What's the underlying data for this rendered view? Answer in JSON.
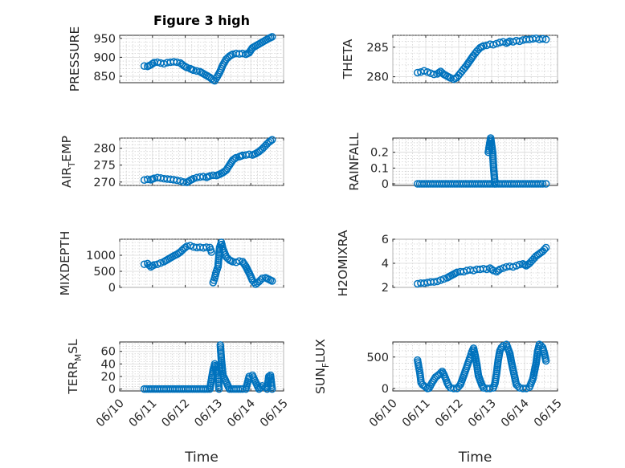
{
  "figure": {
    "title": "Figure 3 high",
    "marker_color": "#0072BD"
  },
  "chart_data": [
    {
      "id": "pressure",
      "type": "scatter",
      "title": "Figure 3 high",
      "ylabel": "PRESSURE",
      "xlabel": "",
      "xlim": [
        0,
        5
      ],
      "ylim": [
        833,
        958
      ],
      "yticks": [
        850,
        900,
        950
      ],
      "x": [
        0.75,
        0.85,
        0.95,
        1.05,
        1.15,
        1.25,
        1.35,
        1.45,
        1.55,
        1.65,
        1.75,
        1.85,
        1.95,
        2.05,
        2.15,
        2.25,
        2.35,
        2.45,
        2.55,
        2.65,
        2.75,
        2.85,
        2.9,
        2.95,
        3.05,
        3.15,
        3.25,
        3.35,
        3.45,
        3.55,
        3.65,
        3.75,
        3.85,
        3.95,
        4.05,
        4.15,
        4.25,
        4.35,
        4.45,
        4.55,
        4.65
      ],
      "y": [
        877,
        876,
        880,
        886,
        887,
        885,
        883,
        886,
        887,
        888,
        887,
        885,
        878,
        873,
        870,
        866,
        864,
        862,
        857,
        852,
        847,
        840,
        838,
        845,
        860,
        880,
        895,
        903,
        908,
        910,
        909,
        910,
        908,
        912,
        925,
        930,
        935,
        940,
        945,
        950,
        954
      ],
      "categories": []
    },
    {
      "id": "theta",
      "type": "scatter",
      "ylabel": "THETA",
      "xlabel": "",
      "xlim": [
        0,
        5
      ],
      "ylim": [
        279,
        287
      ],
      "yticks": [
        280,
        285
      ],
      "x": [
        0.75,
        0.85,
        0.95,
        1.05,
        1.15,
        1.25,
        1.35,
        1.45,
        1.55,
        1.65,
        1.75,
        1.85,
        1.95,
        2.05,
        2.15,
        2.25,
        2.35,
        2.45,
        2.55,
        2.65,
        2.75,
        2.85,
        2.95,
        3.05,
        3.15,
        3.25,
        3.35,
        3.45,
        3.55,
        3.65,
        3.75,
        3.85,
        3.95,
        4.05,
        4.15,
        4.25,
        4.35,
        4.45,
        4.55,
        4.65
      ],
      "y": [
        280.7,
        280.8,
        281.0,
        280.8,
        280.6,
        280.4,
        280.5,
        280.9,
        280.4,
        280.1,
        279.8,
        279.6,
        279.9,
        280.6,
        281.3,
        282.0,
        282.8,
        283.6,
        284.3,
        284.9,
        285.2,
        285.3,
        285.5,
        285.4,
        285.6,
        285.8,
        285.9,
        285.7,
        286.0,
        285.9,
        286.1,
        286.0,
        286.2,
        286.3,
        286.3,
        286.4,
        286.5,
        286.3,
        286.4,
        286.3
      ],
      "categories": []
    },
    {
      "id": "air_temp",
      "type": "scatter",
      "ylabel": "AIR",
      "ylabel_sub": "T",
      "ylabel_rest": "EMP",
      "xlabel": "",
      "xlim": [
        0,
        5
      ],
      "ylim": [
        269,
        283
      ],
      "yticks": [
        270,
        275,
        280
      ],
      "x": [
        0.75,
        0.85,
        0.95,
        1.05,
        1.15,
        1.25,
        1.35,
        1.45,
        1.55,
        1.65,
        1.75,
        1.85,
        1.95,
        2.05,
        2.15,
        2.25,
        2.35,
        2.45,
        2.55,
        2.65,
        2.75,
        2.85,
        2.95,
        3.05,
        3.15,
        3.25,
        3.35,
        3.45,
        3.55,
        3.65,
        3.75,
        3.85,
        3.95,
        4.05,
        4.15,
        4.25,
        4.35,
        4.45,
        4.55,
        4.65
      ],
      "y": [
        270.6,
        270.8,
        270.7,
        271.1,
        271.3,
        271.2,
        271.0,
        270.9,
        270.8,
        270.7,
        270.5,
        270.3,
        270.0,
        269.9,
        270.5,
        271.0,
        271.3,
        271.5,
        271.6,
        271.4,
        271.8,
        272.0,
        271.9,
        272.3,
        272.8,
        273.5,
        275.0,
        276.5,
        277.2,
        277.5,
        277.9,
        278.0,
        278.2,
        278.0,
        278.4,
        279.0,
        279.8,
        280.8,
        281.8,
        282.5
      ],
      "categories": []
    },
    {
      "id": "rainfall",
      "type": "scatter",
      "ylabel": "RAINFALL",
      "xlabel": "",
      "xlim": [
        0,
        5
      ],
      "ylim": [
        -0.01,
        0.29
      ],
      "yticks": [
        0,
        0.1,
        0.2
      ],
      "x": [
        0.75,
        0.95,
        1.15,
        1.35,
        1.55,
        1.75,
        1.95,
        2.15,
        2.35,
        2.55,
        2.75,
        2.95,
        3.15,
        3.35,
        3.55,
        3.75,
        3.95,
        4.15,
        4.35,
        4.55,
        4.65,
        2.9,
        2.97,
        3.03,
        3.06,
        3.1
      ],
      "y": [
        0,
        0,
        0,
        0,
        0,
        0,
        0,
        0,
        0,
        0,
        0,
        0,
        0,
        0,
        0,
        0,
        0,
        0,
        0,
        0,
        0,
        0.2,
        0.29,
        0.2,
        0.1,
        0.0
      ],
      "categories": []
    },
    {
      "id": "mixdepth",
      "type": "scatter",
      "ylabel": "MIXDEPTH",
      "xlabel": "",
      "xlim": [
        0,
        5
      ],
      "ylim": [
        0,
        1500
      ],
      "yticks": [
        0,
        500,
        1000
      ],
      "x": [
        0.75,
        0.85,
        0.95,
        1.05,
        1.15,
        1.25,
        1.35,
        1.45,
        1.55,
        1.65,
        1.75,
        1.85,
        1.95,
        2.05,
        2.15,
        2.25,
        2.35,
        2.45,
        2.55,
        2.65,
        2.75,
        2.8,
        2.85,
        2.9,
        2.95,
        3.0,
        3.05,
        3.1,
        3.15,
        3.25,
        3.35,
        3.45,
        3.55,
        3.65,
        3.75,
        3.85,
        3.95,
        4.05,
        4.15,
        4.25,
        4.35,
        4.45,
        4.55,
        4.65
      ],
      "y": [
        720,
        740,
        640,
        700,
        720,
        760,
        800,
        860,
        920,
        980,
        1030,
        1100,
        1200,
        1280,
        1300,
        1260,
        1240,
        1250,
        1230,
        1250,
        1240,
        1100,
        150,
        300,
        500,
        650,
        1250,
        1400,
        1200,
        950,
        850,
        800,
        780,
        820,
        800,
        650,
        450,
        220,
        100,
        180,
        280,
        300,
        250,
        200
      ],
      "categories": []
    },
    {
      "id": "h2omixra",
      "type": "scatter",
      "ylabel": "H2OMIXRA",
      "xlabel": "",
      "xlim": [
        0,
        5
      ],
      "ylim": [
        2,
        6
      ],
      "yticks": [
        2,
        4,
        6
      ],
      "x": [
        0.75,
        0.85,
        0.95,
        1.05,
        1.15,
        1.25,
        1.35,
        1.45,
        1.55,
        1.65,
        1.75,
        1.85,
        1.95,
        2.05,
        2.15,
        2.25,
        2.35,
        2.45,
        2.55,
        2.65,
        2.75,
        2.85,
        2.95,
        3.05,
        3.15,
        3.25,
        3.35,
        3.45,
        3.55,
        3.65,
        3.75,
        3.85,
        3.95,
        4.05,
        4.15,
        4.25,
        4.35,
        4.45,
        4.55,
        4.65
      ],
      "y": [
        2.3,
        2.35,
        2.35,
        2.4,
        2.45,
        2.45,
        2.5,
        2.6,
        2.7,
        2.8,
        2.95,
        3.1,
        3.25,
        3.3,
        3.3,
        3.4,
        3.45,
        3.4,
        3.5,
        3.5,
        3.55,
        3.5,
        3.6,
        3.4,
        3.3,
        3.5,
        3.6,
        3.7,
        3.75,
        3.7,
        3.8,
        3.9,
        3.95,
        3.8,
        4.0,
        4.3,
        4.6,
        4.8,
        5.0,
        5.3
      ],
      "categories": []
    },
    {
      "id": "terr_msl",
      "type": "scatter",
      "ylabel": "TERR",
      "ylabel_sub": "M",
      "ylabel_rest": "SL",
      "xlabel": "Time",
      "xlim": [
        0,
        5
      ],
      "ylim": [
        -3,
        75
      ],
      "yticks": [
        0,
        20,
        40,
        60
      ],
      "xticks": [
        0,
        1,
        2,
        3,
        4,
        5
      ],
      "xticklabels": [
        "06/10",
        "06/11",
        "06/12",
        "06/13",
        "06/14",
        "06/15"
      ],
      "x": [
        0.75,
        0.95,
        1.15,
        1.35,
        1.55,
        1.75,
        1.95,
        2.15,
        2.35,
        2.55,
        2.75,
        2.85,
        2.9,
        2.95,
        3.0,
        3.03,
        3.07,
        3.1,
        3.15,
        3.35,
        3.55,
        3.75,
        3.85,
        3.95,
        4.05,
        4.1,
        4.25,
        4.35,
        4.45,
        4.5,
        4.55,
        4.6,
        4.65
      ],
      "y": [
        0,
        0,
        0,
        0,
        0,
        0,
        0,
        0,
        0,
        0,
        0,
        30,
        40,
        26,
        25,
        0,
        70,
        48,
        22,
        0,
        0,
        0,
        0,
        20,
        22,
        16,
        0,
        5,
        3,
        0,
        20,
        22,
        0
      ],
      "categories": []
    },
    {
      "id": "sun_flux",
      "type": "scatter",
      "ylabel": "SUN",
      "ylabel_sub": "F",
      "ylabel_rest": "LUX",
      "xlabel": "Time",
      "xlim": [
        0,
        5
      ],
      "ylim": [
        -40,
        740
      ],
      "yticks": [
        0,
        500
      ],
      "xticks": [
        0,
        1,
        2,
        3,
        4,
        5
      ],
      "xticklabels": [
        "06/10",
        "06/11",
        "06/12",
        "06/13",
        "06/14",
        "06/15"
      ],
      "x": [
        0.75,
        0.78,
        0.82,
        0.86,
        0.9,
        0.95,
        1.0,
        1.05,
        1.1,
        1.2,
        1.3,
        1.4,
        1.5,
        1.55,
        1.6,
        1.65,
        1.7,
        1.75,
        1.85,
        1.95,
        2.05,
        2.15,
        2.25,
        2.35,
        2.4,
        2.45,
        2.5,
        2.55,
        2.6,
        2.7,
        2.75,
        2.85,
        2.95,
        3.05,
        3.1,
        3.15,
        3.2,
        3.25,
        3.3,
        3.35,
        3.45,
        3.55,
        3.6,
        3.65,
        3.7,
        3.75,
        3.85,
        3.95,
        4.05,
        4.15,
        4.25,
        4.35,
        4.4,
        4.45,
        4.5,
        4.55,
        4.6,
        4.65
      ],
      "y": [
        450,
        360,
        250,
        90,
        60,
        40,
        20,
        0,
        5,
        100,
        180,
        220,
        270,
        220,
        160,
        90,
        40,
        10,
        0,
        0,
        60,
        200,
        350,
        500,
        580,
        640,
        520,
        380,
        200,
        60,
        10,
        0,
        0,
        10,
        80,
        240,
        450,
        600,
        650,
        680,
        700,
        560,
        420,
        300,
        180,
        60,
        10,
        0,
        0,
        20,
        150,
        400,
        600,
        700,
        680,
        650,
        560,
        440
      ],
      "categories": []
    }
  ]
}
